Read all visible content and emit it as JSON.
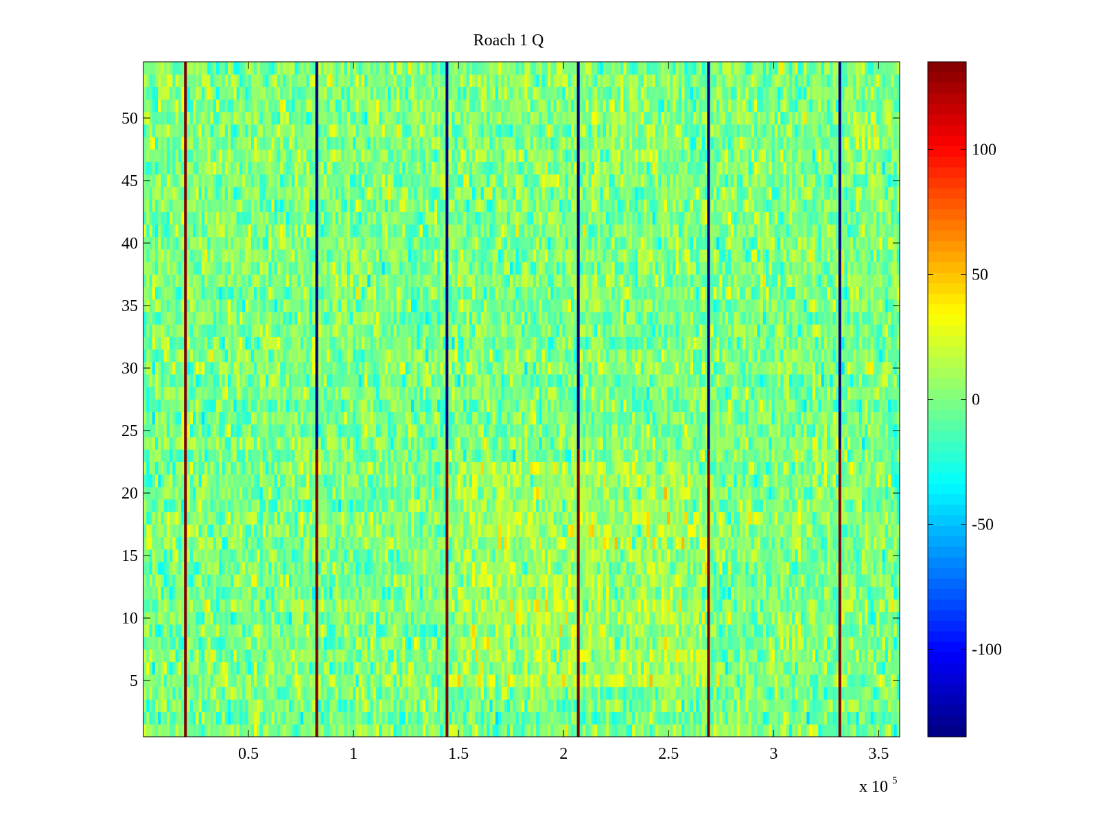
{
  "chart_data": {
    "type": "heatmap",
    "title": "Roach 1 Q",
    "xlabel": "",
    "ylabel": "",
    "x_exponent_label": {
      "base": "x 10",
      "exponent": "5"
    },
    "xlim": [
      0,
      3.6
    ],
    "ylim": [
      0.5,
      54.5
    ],
    "x_ticks": [
      0.5,
      1,
      1.5,
      2,
      2.5,
      3,
      3.5
    ],
    "x_tick_labels": [
      "0.5",
      "1",
      "1.5",
      "2",
      "2.5",
      "3",
      "3.5"
    ],
    "y_ticks": [
      5,
      10,
      15,
      20,
      25,
      30,
      35,
      40,
      45,
      50
    ],
    "y_tick_labels": [
      "5",
      "10",
      "15",
      "20",
      "25",
      "30",
      "35",
      "40",
      "45",
      "50"
    ],
    "rows": 54,
    "colormap": "jet",
    "clim": [
      -135,
      135
    ],
    "colorbar": {
      "ticks": [
        100,
        50,
        0,
        -50,
        -100
      ],
      "tick_labels": [
        "100",
        "50",
        "0",
        "-50",
        "-100"
      ]
    },
    "background_mean": 0,
    "background_noise_spread": 45,
    "mild_warm_region": {
      "x_range": [
        1.5,
        2.7
      ],
      "y_range": [
        5,
        22
      ],
      "mean": 18
    },
    "spike_lines": [
      {
        "x": 0.2,
        "value_rows_1_to_23": 135,
        "value_rows_24_to_54": 135
      },
      {
        "x": 0.825,
        "value_rows_1_to_23": 135,
        "value_rows_24_to_54": -135
      },
      {
        "x": 1.445,
        "value_rows_1_to_23": 135,
        "value_rows_24_to_54": -135
      },
      {
        "x": 2.07,
        "value_rows_1_to_23": 135,
        "value_rows_24_to_54": -135
      },
      {
        "x": 2.69,
        "value_rows_1_to_23": 135,
        "value_rows_24_to_54": -135
      },
      {
        "x": 3.315,
        "value_rows_1_to_23": 135,
        "value_rows_24_to_54": -135
      }
    ],
    "grid": false,
    "legend": "none"
  }
}
